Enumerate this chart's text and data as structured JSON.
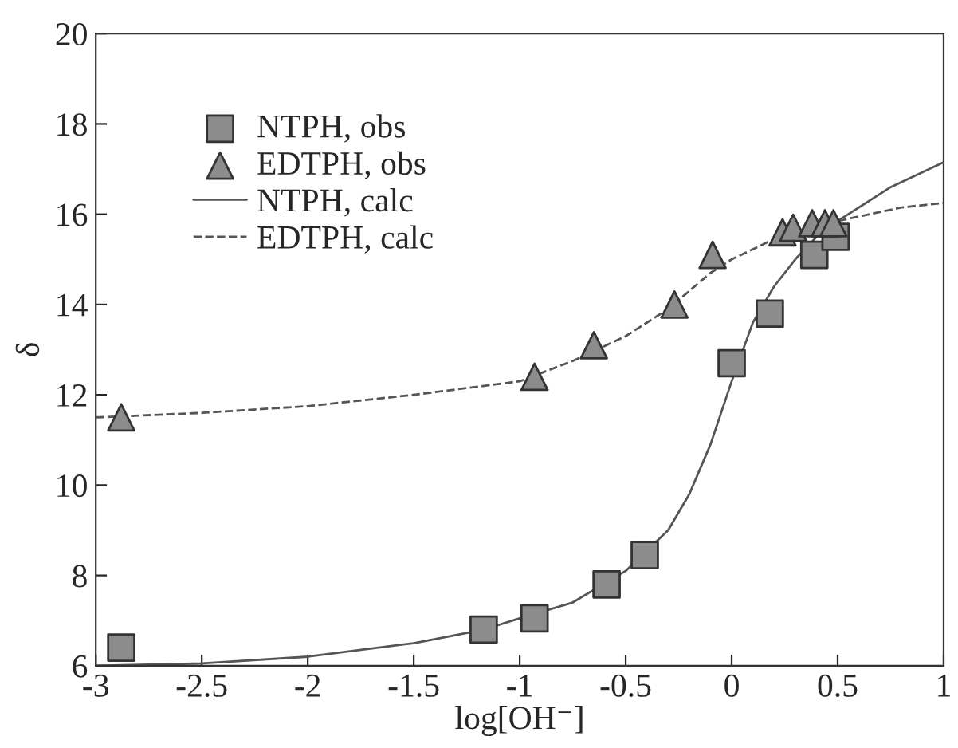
{
  "chart_data": {
    "type": "scatter",
    "xlabel": "log[OH⁻]",
    "ylabel": "δ",
    "xlim": [
      -3,
      1
    ],
    "xticks": [
      -3,
      -2.5,
      -2,
      -1.5,
      -1,
      -0.5,
      0,
      0.5,
      1
    ],
    "ylim": [
      6,
      20
    ],
    "yticks": [
      6,
      8,
      10,
      12,
      14,
      16,
      18,
      20
    ],
    "grid": false,
    "legend": "top left",
    "series": [
      {
        "name": "NTPH, obs",
        "marker": "square",
        "color": "#8c8c8c",
        "x": [
          -2.88,
          -1.17,
          -0.93,
          -0.59,
          -0.41,
          0,
          0.18,
          0.39,
          0.49
        ],
        "values": [
          6.4,
          6.8,
          7.05,
          7.8,
          8.45,
          12.7,
          13.8,
          15.1,
          15.5
        ]
      },
      {
        "name": "EDTPH, obs",
        "marker": "triangle",
        "color": "#8c8c8c",
        "x": [
          -2.88,
          -0.93,
          -0.65,
          -0.27,
          -0.09,
          0.24,
          0.29,
          0.38,
          0.44,
          0.48
        ],
        "values": [
          11.5,
          12.4,
          13.1,
          14.0,
          15.1,
          15.6,
          15.7,
          15.8,
          15.8,
          15.8
        ]
      },
      {
        "name": "NTPH, calc",
        "type": "line",
        "line_style": "solid",
        "color": "#555555",
        "x": [
          -3,
          -2.5,
          -2,
          -1.5,
          -1.17,
          -1,
          -0.75,
          -0.5,
          -0.3,
          -0.2,
          -0.1,
          0,
          0.1,
          0.2,
          0.3,
          0.4,
          0.5,
          0.75,
          1
        ],
        "values": [
          6.0,
          6.05,
          6.2,
          6.5,
          6.8,
          7.05,
          7.4,
          8.1,
          9.0,
          9.8,
          10.9,
          12.3,
          13.6,
          14.4,
          15.0,
          15.5,
          15.85,
          16.6,
          17.15
        ]
      },
      {
        "name": "EDTPH, calc",
        "type": "line",
        "line_style": "dashed",
        "color": "#555555",
        "x": [
          -3,
          -2.5,
          -2,
          -1.5,
          -1,
          -0.75,
          -0.5,
          -0.3,
          -0.1,
          0,
          0.2,
          0.4,
          0.6,
          0.8,
          1
        ],
        "values": [
          11.5,
          11.6,
          11.75,
          12.0,
          12.3,
          12.75,
          13.3,
          13.9,
          14.7,
          15.0,
          15.45,
          15.75,
          15.95,
          16.15,
          16.25
        ]
      }
    ]
  }
}
